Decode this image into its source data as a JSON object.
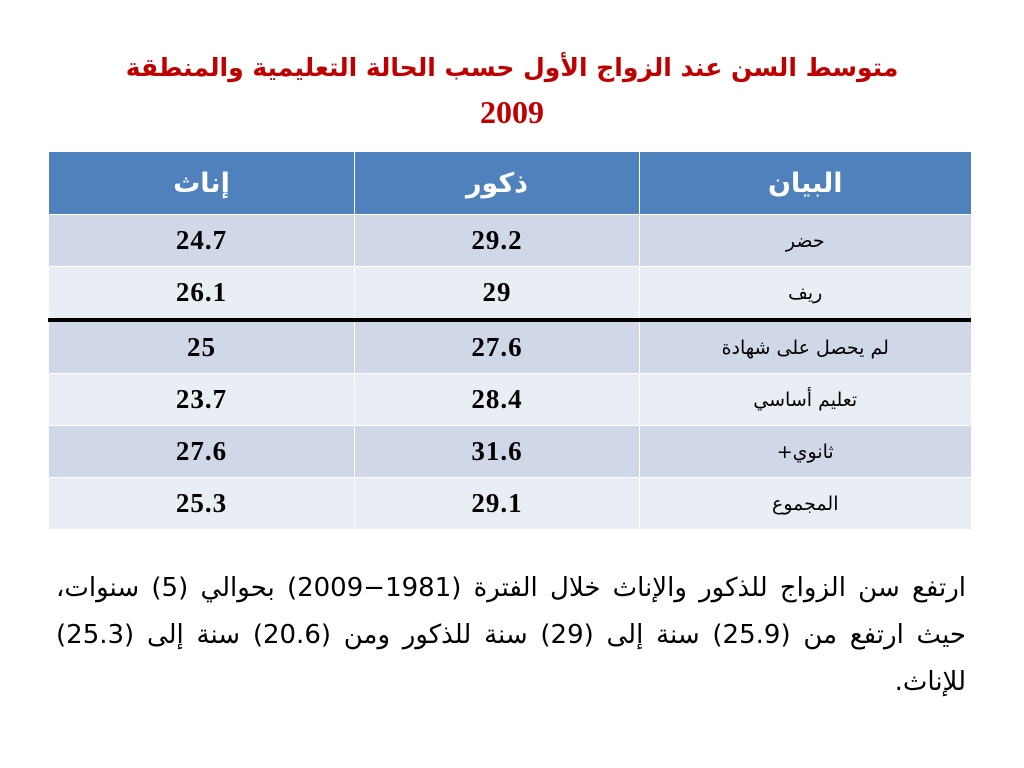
{
  "slide": {
    "title": "متوسط السن عند الزواج الأول حسب الحالة التعليمية والمنطقة",
    "year": "2009"
  },
  "table": {
    "headers": {
      "label": "البيان",
      "male": "ذكور",
      "female": "إناث"
    },
    "rows": [
      {
        "label": "حضر",
        "male": "29.2",
        "female": "24.7"
      },
      {
        "label": "ريف",
        "male": "29",
        "female": "26.1"
      },
      {
        "label": "لم يحصل على شهادة",
        "male": "27.6",
        "female": "25"
      },
      {
        "label": "تعليم أساسي",
        "male": "28.4",
        "female": "23.7"
      },
      {
        "label": "ثانوي+",
        "male": "31.6",
        "female": "27.6"
      },
      {
        "label": "المجموع",
        "male": "29.1",
        "female": "25.3"
      }
    ]
  },
  "note": {
    "text": "ارتفع سن الزواج للذكور والإناث خلال الفترة (1981−2009) بحوالي (5) سنوات، حيث ارتفع من (25.9) سنة إلى (29) سنة للذكور ومن (20.6) سنة إلى (25.3) للإناث."
  },
  "colors": {
    "title": "#c00000",
    "header_bg": "#4f81bd",
    "row_odd": "#d0d8e8",
    "row_even": "#e9edf4"
  }
}
